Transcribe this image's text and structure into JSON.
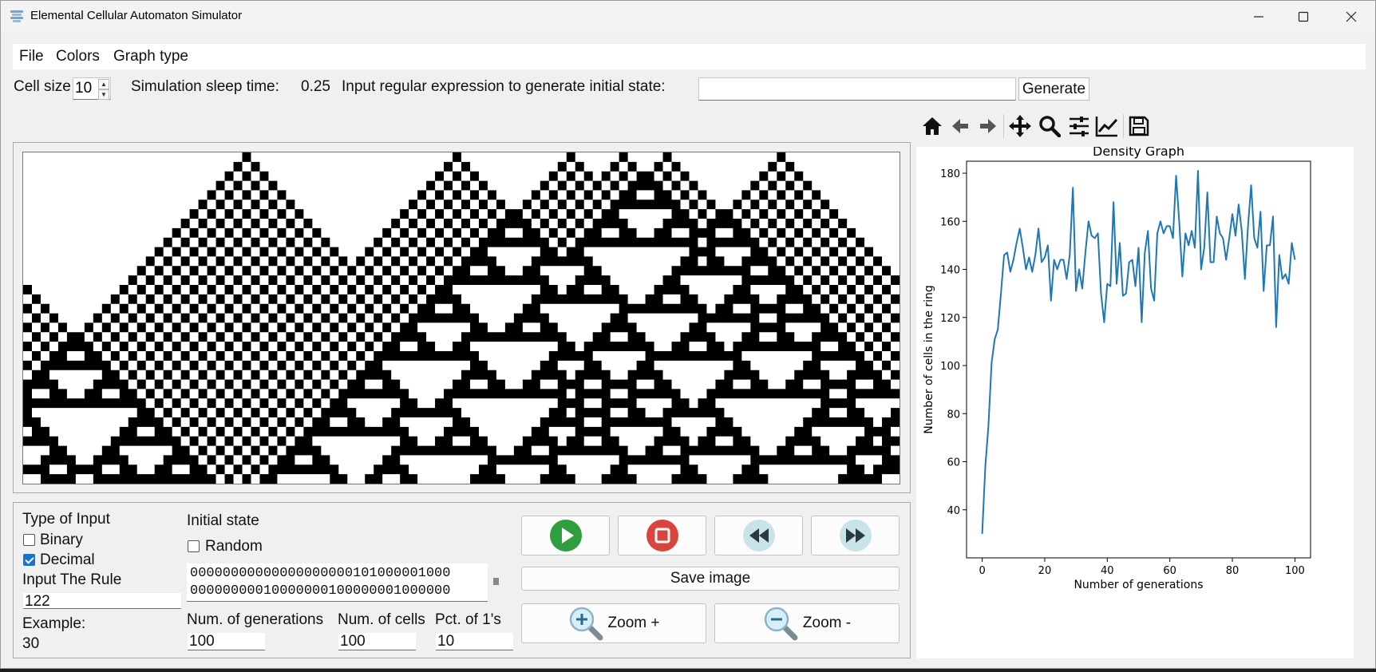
{
  "window": {
    "title": "Elemental Cellular Automaton Simulator",
    "minimize_label": "—",
    "maximize_label": "☐",
    "close_label": "✕"
  },
  "menu": {
    "file": "File",
    "colors": "Colors",
    "graph_type": "Graph type"
  },
  "settings": {
    "cell_size_label": "Cell size",
    "cell_size_value": "10",
    "sleep_label": "Simulation sleep time:",
    "sleep_value": "0.25",
    "regex_label": "Input regular expression to generate initial state:",
    "regex_value": "",
    "generate_label": "Generate"
  },
  "toolbar": {
    "icons": [
      "home-icon",
      "back-arrow-icon",
      "forward-arrow-icon",
      "pan-icon",
      "zoom-icon",
      "configure-subplots-icon",
      "edit-axis-icon",
      "save-icon"
    ]
  },
  "controls": {
    "type_of_input_label": "Type of Input",
    "binary_label": "Binary",
    "binary_checked": false,
    "decimal_label": "Decimal",
    "decimal_checked": true,
    "input_rule_label": "Input The Rule",
    "rule_value": "122",
    "example_label": "Example:",
    "example_value": "30",
    "initial_state_label": "Initial state",
    "random_label": "Random",
    "random_checked": false,
    "initial_state_line1": "00000000000000000000101000001000",
    "initial_state_line2": "00000000010000000100000001000000",
    "num_generations_label": "Num. of generations",
    "num_generations_value": "100",
    "num_cells_label": "Num. of cells",
    "num_cells_value": "100",
    "pct_ones_label": "Pct. of 1's",
    "pct_ones_value": "10",
    "save_image_label": "Save image",
    "zoom_in_label": "Zoom +",
    "zoom_out_label": "Zoom -",
    "play_color": "#2e9e3e",
    "stop_color": "#d9453c",
    "seek_color": "#c9e3ea"
  },
  "chart_data": {
    "type": "line",
    "title": "Density Graph",
    "xlabel": "Number of generations",
    "ylabel": "Number of cells in the ring",
    "xlim": [
      -5,
      105
    ],
    "ylim": [
      20,
      185
    ],
    "xticks": [
      0,
      20,
      40,
      60,
      80,
      100
    ],
    "yticks": [
      40,
      60,
      80,
      100,
      120,
      140,
      160,
      180
    ],
    "line_color": "#1f77b4",
    "grid": false,
    "x": [
      0,
      1,
      2,
      3,
      4,
      5,
      6,
      7,
      8,
      9,
      10,
      11,
      12,
      13,
      14,
      15,
      16,
      17,
      18,
      19,
      20,
      21,
      22,
      23,
      24,
      25,
      26,
      27,
      28,
      29,
      30,
      31,
      32,
      33,
      34,
      35,
      36,
      37,
      38,
      39,
      40,
      41,
      42,
      43,
      44,
      45,
      46,
      47,
      48,
      49,
      50,
      51,
      52,
      53,
      54,
      55,
      56,
      57,
      58,
      59,
      60,
      61,
      62,
      63,
      64,
      65,
      66,
      67,
      68,
      69,
      70,
      71,
      72,
      73,
      74,
      75,
      76,
      77,
      78,
      79,
      80,
      81,
      82,
      83,
      84,
      85,
      86,
      87,
      88,
      89,
      90,
      91,
      92,
      93,
      94,
      95,
      96,
      97,
      98,
      99,
      100
    ],
    "y": [
      30,
      58,
      75,
      101,
      111,
      115,
      130,
      146,
      147,
      139,
      144,
      151,
      157,
      149,
      140,
      145,
      139,
      146,
      157,
      143,
      145,
      150,
      127,
      144,
      140,
      144,
      144,
      136,
      146,
      174,
      131,
      140,
      132,
      147,
      160,
      154,
      153,
      155,
      130,
      118,
      134,
      133,
      168,
      134,
      151,
      129,
      130,
      143,
      144,
      133,
      149,
      118,
      147,
      156,
      132,
      127,
      155,
      160,
      155,
      158,
      158,
      153,
      179,
      160,
      137,
      155,
      150,
      156,
      149,
      181,
      140,
      149,
      172,
      143,
      143,
      162,
      155,
      153,
      144,
      153,
      163,
      154,
      167,
      156,
      136,
      158,
      175,
      153,
      149,
      164,
      131,
      150,
      150,
      162,
      116,
      146,
      136,
      138,
      134,
      151,
      144
    ]
  }
}
